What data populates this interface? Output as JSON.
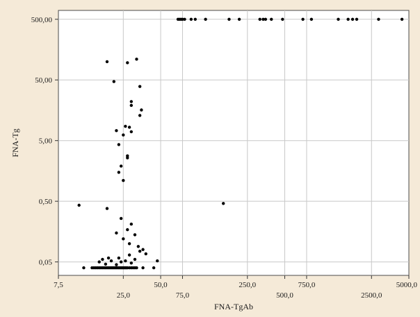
{
  "chart_data": {
    "type": "scatter",
    "xlabel": "FNA-TgAb",
    "ylabel": "FNA-Tg",
    "x_scale": "log",
    "y_scale": "log",
    "xlim": [
      7.5,
      5000
    ],
    "ylim": [
      0.03,
      700
    ],
    "x_ticks_bottom": [
      "7,5",
      "50,0",
      "250,0",
      "750,0",
      "5000,0"
    ],
    "x_tick_values_bottom": [
      7.5,
      50,
      250,
      750,
      5000
    ],
    "x_ticks_top": [
      "25,0",
      "75,0",
      "500,0",
      "2500,0"
    ],
    "x_tick_values_top": [
      25,
      75,
      500,
      2500
    ],
    "y_ticks": [
      "0,05",
      "0,50",
      "5,00",
      "50,00",
      "500,00"
    ],
    "y_tick_values": [
      0.05,
      0.5,
      5,
      50,
      500
    ],
    "grid": true,
    "marker_color": "#000000",
    "points": [
      [
        69,
        500
      ],
      [
        71,
        500
      ],
      [
        73,
        500
      ],
      [
        75,
        500
      ],
      [
        78,
        500
      ],
      [
        88,
        500
      ],
      [
        95,
        500
      ],
      [
        115,
        500
      ],
      [
        178,
        500
      ],
      [
        215,
        500
      ],
      [
        315,
        500
      ],
      [
        335,
        500
      ],
      [
        350,
        500
      ],
      [
        390,
        500
      ],
      [
        480,
        500
      ],
      [
        700,
        500
      ],
      [
        820,
        500
      ],
      [
        1350,
        500
      ],
      [
        1620,
        500
      ],
      [
        1760,
        500
      ],
      [
        1900,
        500
      ],
      [
        2850,
        500
      ],
      [
        4400,
        500
      ],
      [
        18.5,
        100
      ],
      [
        21,
        47
      ],
      [
        27,
        96
      ],
      [
        32,
        110
      ],
      [
        29,
        22
      ],
      [
        34,
        39
      ],
      [
        35,
        16
      ],
      [
        29,
        19
      ],
      [
        34,
        13
      ],
      [
        29,
        7
      ],
      [
        25,
        6.2
      ],
      [
        23,
        4.3
      ],
      [
        26,
        8.6
      ],
      [
        22,
        7.3
      ],
      [
        28,
        8.3
      ],
      [
        27,
        2.8
      ],
      [
        27,
        2.6
      ],
      [
        24,
        1.9
      ],
      [
        23,
        1.5
      ],
      [
        25,
        1.1
      ],
      [
        11,
        0.43
      ],
      [
        18.5,
        0.38
      ],
      [
        160,
        0.46
      ],
      [
        24,
        0.26
      ],
      [
        29,
        0.21
      ],
      [
        27,
        0.17
      ],
      [
        31,
        0.14
      ],
      [
        22,
        0.15
      ],
      [
        25,
        0.12
      ],
      [
        28,
        0.1
      ],
      [
        33,
        0.09
      ],
      [
        36,
        0.08
      ],
      [
        34,
        0.075
      ],
      [
        38,
        0.068
      ],
      [
        28,
        0.065
      ],
      [
        23,
        0.058
      ],
      [
        47,
        0.052
      ],
      [
        20,
        0.052
      ],
      [
        16,
        0.05
      ],
      [
        17,
        0.055
      ],
      [
        31,
        0.055
      ],
      [
        24,
        0.05
      ],
      [
        22,
        0.045
      ],
      [
        26,
        0.052
      ],
      [
        29,
        0.048
      ],
      [
        18,
        0.046
      ],
      [
        19,
        0.058
      ],
      [
        12,
        0.04
      ],
      [
        14,
        0.04
      ],
      [
        14.5,
        0.04
      ],
      [
        15,
        0.04
      ],
      [
        15.5,
        0.04
      ],
      [
        16,
        0.04
      ],
      [
        16.5,
        0.04
      ],
      [
        17,
        0.04
      ],
      [
        17.5,
        0.04
      ],
      [
        18,
        0.04
      ],
      [
        18.5,
        0.04
      ],
      [
        19,
        0.04
      ],
      [
        19.5,
        0.04
      ],
      [
        20,
        0.04
      ],
      [
        20.5,
        0.04
      ],
      [
        21,
        0.04
      ],
      [
        21.5,
        0.04
      ],
      [
        22,
        0.04
      ],
      [
        22.5,
        0.04
      ],
      [
        23,
        0.04
      ],
      [
        23.5,
        0.04
      ],
      [
        24,
        0.04
      ],
      [
        24.5,
        0.04
      ],
      [
        25,
        0.04
      ],
      [
        25.5,
        0.04
      ],
      [
        26,
        0.04
      ],
      [
        26.5,
        0.04
      ],
      [
        27,
        0.04
      ],
      [
        28,
        0.04
      ],
      [
        29,
        0.04
      ],
      [
        30,
        0.04
      ],
      [
        31,
        0.04
      ],
      [
        32,
        0.04
      ],
      [
        36,
        0.04
      ],
      [
        44,
        0.04
      ]
    ]
  }
}
